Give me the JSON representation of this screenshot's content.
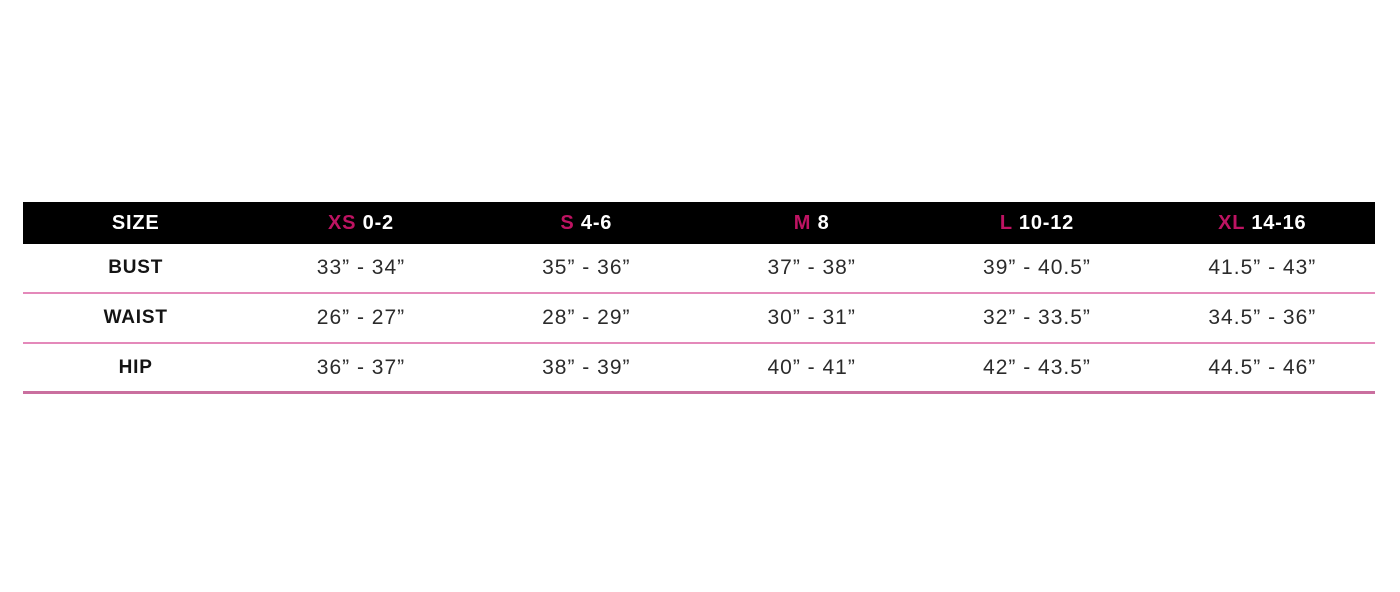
{
  "size_chart": {
    "header": {
      "size_label": "SIZE",
      "columns": [
        {
          "size": "XS",
          "range": "0-2"
        },
        {
          "size": "S",
          "range": "4-6"
        },
        {
          "size": "M",
          "range": "8"
        },
        {
          "size": "L",
          "range": "10-12"
        },
        {
          "size": "XL",
          "range": "14-16"
        }
      ]
    },
    "rows": [
      {
        "label": "BUST",
        "values": [
          "33” - 34”",
          "35” - 36”",
          "37” - 38”",
          "39” - 40.5”",
          "41.5” - 43”"
        ]
      },
      {
        "label": "WAIST",
        "values": [
          "26” - 27”",
          "28” - 29”",
          "30” - 31”",
          "32” - 33.5”",
          "34.5” - 36”"
        ]
      },
      {
        "label": "HIP",
        "values": [
          "36” - 37”",
          "38” - 39”",
          "40” - 41”",
          "42” - 43.5”",
          "44.5” - 46”"
        ]
      }
    ],
    "colors": {
      "header_bg": "#000000",
      "header_text": "#ffffff",
      "accent_pink": "#be1362",
      "divider_pink": "#e489ba",
      "divider_bottom_pink": "#ca6f9f",
      "body_text": "#2b2b2b"
    }
  }
}
